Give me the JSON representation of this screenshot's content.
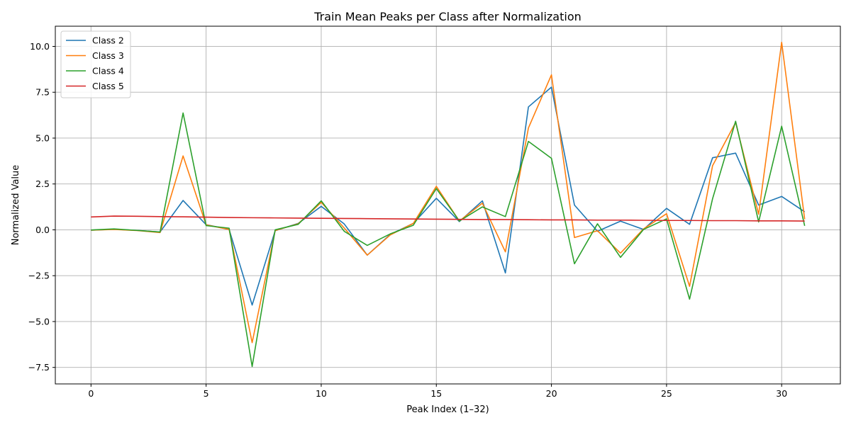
{
  "chart_data": {
    "type": "line",
    "title": "Train Mean Peaks per Class after Normalization",
    "xlabel": "Peak Index (1–32)",
    "ylabel": "Normalized Value",
    "xlim": [
      -1.55,
      32.55
    ],
    "ylim": [
      -8.4,
      11.1
    ],
    "xticks": [
      0,
      5,
      10,
      15,
      20,
      25,
      30
    ],
    "yticks": [
      -7.5,
      -5.0,
      -2.5,
      0.0,
      2.5,
      5.0,
      7.5,
      10.0
    ],
    "ytick_labels": [
      "−7.5",
      "−5.0",
      "−2.5",
      "0.0",
      "2.5",
      "5.0",
      "7.5",
      "10.0"
    ],
    "grid": true,
    "legend_position": "top-left",
    "x": [
      0,
      1,
      2,
      3,
      4,
      5,
      6,
      7,
      8,
      9,
      10,
      11,
      12,
      13,
      14,
      15,
      16,
      17,
      18,
      19,
      20,
      21,
      22,
      23,
      24,
      25,
      26,
      27,
      28,
      29,
      30,
      31
    ],
    "series": [
      {
        "name": "Class 2",
        "color": "#1f77b4",
        "values": [
          -0.02,
          0.03,
          -0.03,
          -0.12,
          1.6,
          0.28,
          0.02,
          -4.1,
          -0.05,
          0.35,
          1.28,
          0.32,
          -1.38,
          -0.25,
          0.35,
          1.72,
          0.45,
          1.58,
          -2.35,
          6.7,
          7.78,
          1.35,
          -0.08,
          0.47,
          0.02,
          1.17,
          0.3,
          3.93,
          4.18,
          1.35,
          1.82,
          0.98
        ]
      },
      {
        "name": "Class 3",
        "color": "#ff7f0e",
        "values": [
          -0.02,
          0.02,
          -0.04,
          -0.15,
          4.03,
          0.27,
          0.02,
          -6.15,
          -0.04,
          0.33,
          1.5,
          0.1,
          -1.38,
          -0.28,
          0.35,
          2.37,
          0.48,
          1.45,
          -1.2,
          5.55,
          8.45,
          -0.42,
          -0.05,
          -1.27,
          0.05,
          0.88,
          -3.08,
          3.5,
          5.85,
          0.85,
          10.22,
          0.58
        ]
      },
      {
        "name": "Class 4",
        "color": "#2ca02c",
        "values": [
          -0.01,
          0.05,
          -0.03,
          -0.12,
          6.37,
          0.23,
          0.09,
          -7.45,
          0.0,
          0.3,
          1.58,
          -0.08,
          -0.85,
          -0.22,
          0.25,
          2.25,
          0.48,
          1.25,
          0.72,
          4.82,
          3.9,
          -1.85,
          0.33,
          -1.5,
          0.02,
          0.6,
          -3.78,
          1.7,
          5.92,
          0.43,
          5.65,
          0.22
        ]
      },
      {
        "name": "Class 5",
        "color": "#d62728",
        "values": [
          0.7,
          0.75,
          0.74,
          0.72,
          0.71,
          0.69,
          0.67,
          0.66,
          0.65,
          0.64,
          0.63,
          0.62,
          0.61,
          0.6,
          0.59,
          0.58,
          0.57,
          0.56,
          0.56,
          0.55,
          0.54,
          0.54,
          0.53,
          0.53,
          0.52,
          0.51,
          0.51,
          0.5,
          0.5,
          0.49,
          0.49,
          0.48
        ]
      }
    ]
  }
}
